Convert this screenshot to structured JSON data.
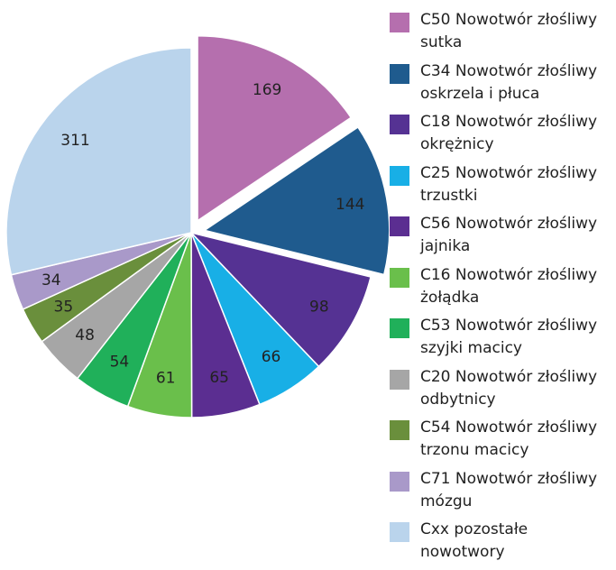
{
  "chart_data": {
    "type": "pie",
    "categories": [
      "C50 Nowotwór złośliwy sutka",
      "C34 Nowotwór złośliwy oskrzela i płuca",
      "C18 Nowotwór złośliwy okrężnicy",
      "C25 Nowotwór złośliwy trzustki",
      "C56 Nowotwór złośliwy jajnika",
      "C16 Nowotwór złośliwy żołądka",
      "C53 Nowotwór złośliwy szyjki macicy",
      "C20 Nowotwór złośliwy odbytnicy",
      "C54 Nowotwór złośliwy trzonu macicy",
      "C71 Nowotwór złośliwy mózgu",
      "Cxx pozostałe nowotwory"
    ],
    "values": [
      169,
      144,
      98,
      66,
      65,
      61,
      54,
      48,
      35,
      34,
      311
    ],
    "colors": [
      "#b56fae",
      "#1f5b8e",
      "#553293",
      "#18afe6",
      "#5b2e91",
      "#6abf4b",
      "#20b05a",
      "#a6a6a6",
      "#6a8f3c",
      "#a999c9",
      "#bad4ec"
    ],
    "exploded": [
      true,
      true,
      false,
      false,
      false,
      false,
      false,
      false,
      false,
      false,
      false
    ]
  }
}
